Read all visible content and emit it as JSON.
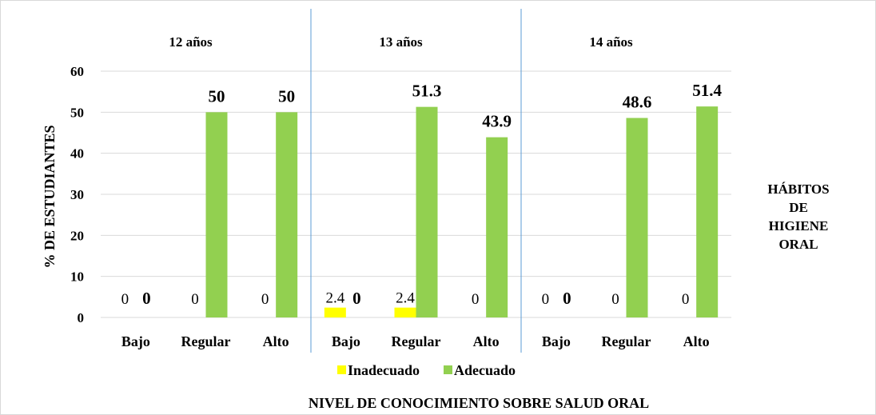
{
  "chart_data": {
    "type": "bar",
    "groups": [
      "12 años",
      "13 años",
      "14 años"
    ],
    "categories": [
      "Bajo",
      "Regular",
      "Alto"
    ],
    "series": [
      {
        "name": "Inadecuado",
        "color": "#ffff00",
        "values": [
          [
            0,
            0,
            0
          ],
          [
            2.4,
            2.4,
            0
          ],
          [
            0,
            0,
            0
          ]
        ],
        "labels": [
          [
            "0",
            "0",
            "0"
          ],
          [
            "2.4",
            "2.4",
            "0"
          ],
          [
            "0",
            "0",
            "0"
          ]
        ]
      },
      {
        "name": "Adecuado",
        "color": "#92d050",
        "values": [
          [
            0,
            50,
            50
          ],
          [
            0,
            51.3,
            43.9
          ],
          [
            0,
            48.6,
            51.4
          ]
        ],
        "labels": [
          [
            "0",
            "50",
            "50"
          ],
          [
            "0",
            "51.3",
            "43.9"
          ],
          [
            "0",
            "48.6",
            "51.4"
          ]
        ]
      }
    ],
    "ylabel": "% DE ESTUDIANTES",
    "xlabel": "NIVEL DE CONOCIMIENTO SOBRE SALUD ORAL",
    "side_title": [
      "HÁBITOS",
      "DE",
      "HIGIENE",
      "ORAL"
    ],
    "ylim": [
      0,
      60
    ],
    "yticks": [
      0,
      10,
      20,
      30,
      40,
      50,
      60
    ],
    "grid": true,
    "legend_position": "bottom"
  }
}
